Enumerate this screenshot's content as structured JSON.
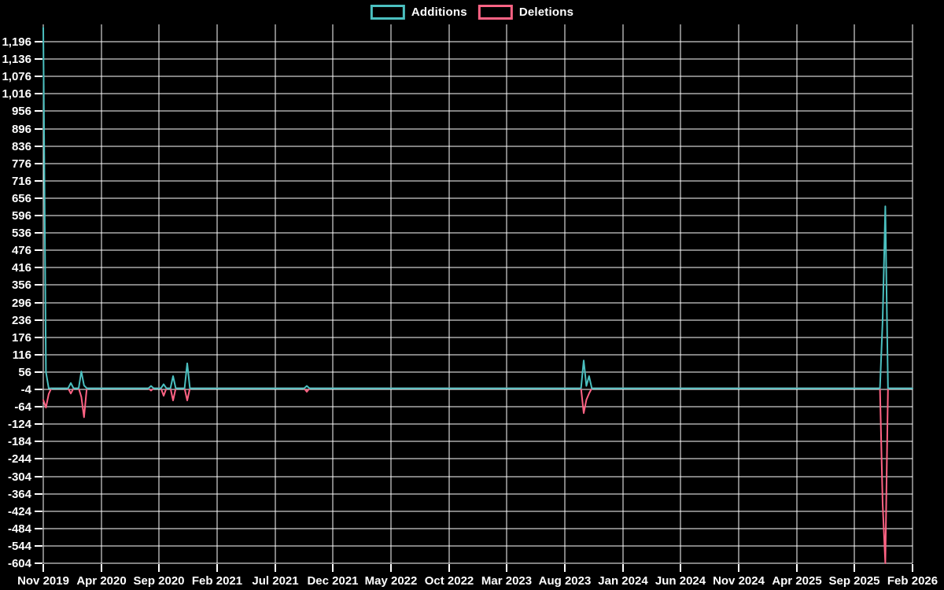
{
  "page": {
    "background_color": "#000000",
    "grid_color": "#ffffff",
    "text_color": "#ffffff"
  },
  "legend": {
    "position": "top-center",
    "items": [
      {
        "label": "Additions",
        "color": "#4bc0c0"
      },
      {
        "label": "Deletions",
        "color": "#ff6384"
      }
    ]
  },
  "chart_data": {
    "type": "line",
    "title": "",
    "grid": true,
    "legend_position": "top-center",
    "background": "#000000",
    "grid_color": "#ffffff",
    "x_axis": {
      "labels": [
        "Nov 2019",
        "Apr 2020",
        "Sep 2020",
        "Feb 2021",
        "Jul 2021",
        "Dec 2021",
        "May 2022",
        "Oct 2022",
        "Mar 2023",
        "Aug 2023",
        "Jan 2024",
        "Jun 2024",
        "Nov 2024",
        "Apr 2025",
        "Sep 2025",
        "Feb 2026"
      ],
      "start": "Nov 2019",
      "end": "Feb 2026"
    },
    "y_axis": {
      "min": -604,
      "max": 1256,
      "tick_step": 60,
      "tick_values": [
        1196,
        1136,
        1076,
        1016,
        956,
        896,
        836,
        776,
        716,
        656,
        596,
        536,
        476,
        416,
        356,
        296,
        236,
        176,
        116,
        56,
        -4,
        -64,
        -124,
        -184,
        -244,
        -304,
        -364,
        -424,
        -484,
        -544,
        -604
      ],
      "tick_labels": [
        "1,196",
        "1,136",
        "1,076",
        "1,016",
        "956",
        "896",
        "836",
        "776",
        "716",
        "656",
        "596",
        "536",
        "476",
        "416",
        "356",
        "296",
        "236",
        "176",
        "116",
        "56",
        "-4",
        "-64",
        "-124",
        "-184",
        "-244",
        "-304",
        "-364",
        "-424",
        "-484",
        "-544",
        "-604"
      ]
    },
    "series": [
      {
        "name": "Additions",
        "color": "#4bc0c0",
        "points": [
          [
            0.0,
            1245
          ],
          [
            0.0031,
            56
          ],
          [
            0.0062,
            0
          ],
          [
            0.0092,
            0
          ],
          [
            0.0286,
            0
          ],
          [
            0.0317,
            18
          ],
          [
            0.0348,
            0
          ],
          [
            0.0407,
            0
          ],
          [
            0.0438,
            58
          ],
          [
            0.0469,
            10
          ],
          [
            0.05,
            0
          ],
          [
            0.1209,
            0
          ],
          [
            0.124,
            8
          ],
          [
            0.1271,
            0
          ],
          [
            0.1354,
            0
          ],
          [
            0.1385,
            14
          ],
          [
            0.1416,
            0
          ],
          [
            0.1463,
            0
          ],
          [
            0.1493,
            42
          ],
          [
            0.1524,
            0
          ],
          [
            0.1625,
            0
          ],
          [
            0.1656,
            86
          ],
          [
            0.1687,
            0
          ],
          [
            0.3001,
            0
          ],
          [
            0.3032,
            8
          ],
          [
            0.3063,
            0
          ],
          [
            0.6186,
            0
          ],
          [
            0.6217,
            96
          ],
          [
            0.6248,
            8
          ],
          [
            0.6279,
            42
          ],
          [
            0.631,
            0
          ],
          [
            0.9625,
            0
          ],
          [
            0.9656,
            235
          ],
          [
            0.9687,
            628
          ],
          [
            0.9718,
            0
          ],
          [
            1.0,
            0
          ]
        ]
      },
      {
        "name": "Deletions",
        "color": "#ff6384",
        "points": [
          [
            0.0,
            -40
          ],
          [
            0.0031,
            -67
          ],
          [
            0.0062,
            -20
          ],
          [
            0.0092,
            0
          ],
          [
            0.0286,
            0
          ],
          [
            0.0317,
            -18
          ],
          [
            0.0348,
            0
          ],
          [
            0.0407,
            0
          ],
          [
            0.0438,
            -30
          ],
          [
            0.0469,
            -100
          ],
          [
            0.05,
            0
          ],
          [
            0.1209,
            0
          ],
          [
            0.124,
            -8
          ],
          [
            0.1271,
            0
          ],
          [
            0.1354,
            0
          ],
          [
            0.1385,
            -26
          ],
          [
            0.1416,
            0
          ],
          [
            0.1463,
            0
          ],
          [
            0.1493,
            -42
          ],
          [
            0.1524,
            0
          ],
          [
            0.1625,
            0
          ],
          [
            0.1656,
            -42
          ],
          [
            0.1687,
            0
          ],
          [
            0.3001,
            0
          ],
          [
            0.3032,
            -12
          ],
          [
            0.3063,
            0
          ],
          [
            0.6186,
            0
          ],
          [
            0.6217,
            -86
          ],
          [
            0.6248,
            -40
          ],
          [
            0.6279,
            -18
          ],
          [
            0.631,
            0
          ],
          [
            0.9625,
            0
          ],
          [
            0.9656,
            -398
          ],
          [
            0.9687,
            -604
          ],
          [
            0.9718,
            0
          ],
          [
            1.0,
            0
          ]
        ]
      }
    ]
  }
}
